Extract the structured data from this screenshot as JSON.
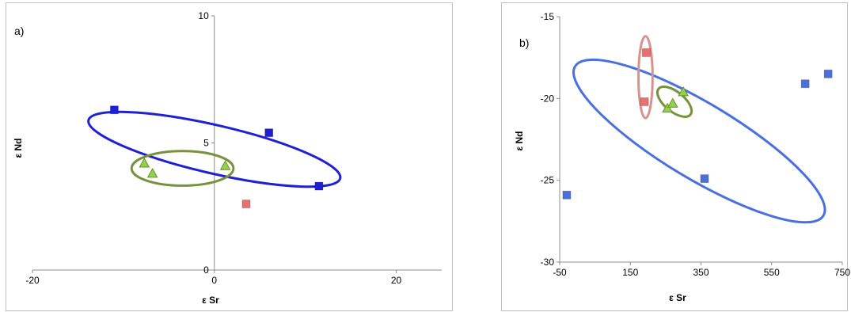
{
  "chart_data": [
    {
      "type": "scatter",
      "panel_label": "a)",
      "xlabel": "ε Sr",
      "ylabel": "ε Nd",
      "xlim": [
        -20,
        25
      ],
      "ylim": [
        0,
        10
      ],
      "xticks": [
        -20,
        0,
        20
      ],
      "yticks": [
        0,
        5,
        10
      ],
      "grid": false,
      "series": [
        {
          "marker": "square",
          "color": "#1f1fd6",
          "points": [
            [
              -11,
              6.3
            ],
            [
              6,
              5.4
            ],
            [
              11.5,
              3.3
            ]
          ]
        },
        {
          "marker": "square",
          "color": "#e8716f",
          "points": [
            [
              3.5,
              2.6
            ]
          ]
        },
        {
          "marker": "triangle",
          "color": "#92d050",
          "points": [
            [
              -7.7,
              4.2
            ],
            [
              -6.8,
              3.8
            ],
            [
              1.2,
              4.1
            ]
          ]
        }
      ],
      "ellipses": [
        {
          "color": "#1f1fd6",
          "cx": 0,
          "cy": 4.75,
          "rx": 14.2,
          "ry": 0.95,
          "angle": 13
        },
        {
          "color": "#76923c",
          "cx": -3.5,
          "cy": 4.0,
          "rx": 5.6,
          "ry": 0.68,
          "angle": 0
        }
      ]
    },
    {
      "type": "scatter",
      "panel_label": "b)",
      "xlabel": "ε Sr",
      "ylabel": "ε Nd",
      "xlim": [
        -50,
        750
      ],
      "ylim": [
        -30,
        -15
      ],
      "xticks": [
        -50,
        150,
        350,
        550,
        750
      ],
      "yticks": [
        -15,
        -20,
        -25,
        -30
      ],
      "grid": false,
      "series": [
        {
          "marker": "square",
          "color": "#4a6fdf",
          "points": [
            [
              -30,
              -25.9
            ],
            [
              360,
              -24.9
            ],
            [
              645,
              -19.1
            ],
            [
              710,
              -18.5
            ]
          ]
        },
        {
          "marker": "square",
          "color": "#e8716f",
          "points": [
            [
              195,
              -17.2
            ],
            [
              190,
              -20.2
            ]
          ]
        },
        {
          "marker": "triangle",
          "color": "#92d050",
          "points": [
            [
              255,
              -20.6
            ],
            [
              270,
              -20.3
            ],
            [
              300,
              -19.6
            ]
          ]
        }
      ],
      "ellipses": [
        {
          "color": "#4a6fdf",
          "cx": 345,
          "cy": -22.6,
          "rx": 410,
          "ry": 2.3,
          "angle": 31
        },
        {
          "color": "#d9918d",
          "cx": 193,
          "cy": -18.7,
          "rx": 20,
          "ry": 2.5,
          "angle": 0
        },
        {
          "color": "#76923c",
          "cx": 275,
          "cy": -20.2,
          "rx": 58,
          "ry": 0.6,
          "angle": 39
        }
      ]
    }
  ]
}
